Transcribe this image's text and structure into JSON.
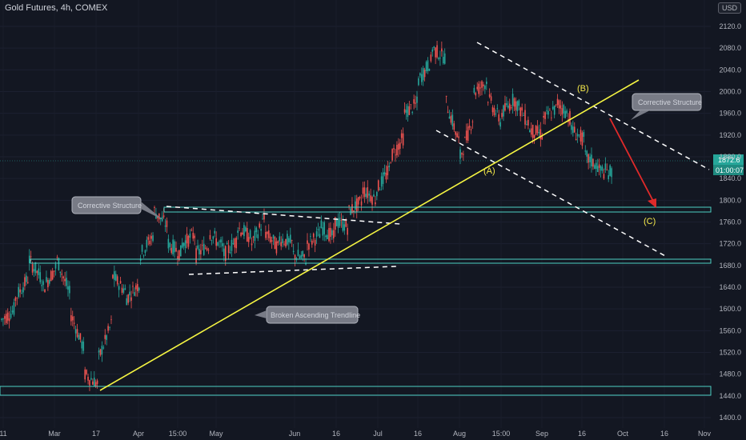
{
  "header": {
    "title": "Gold Futures, 4h, COMEX",
    "currency_button": "USD"
  },
  "colors": {
    "background": "#131722",
    "up_candle": "#26a69a",
    "down_candle": "#ef5350",
    "trendline": "#f5f542",
    "support_zone": "#4dd0c4",
    "dashed_lines": "#ffffff",
    "arrow": "#e02a2a",
    "price_tag": "#26a69a"
  },
  "current_price": {
    "price": "1872.6",
    "countdown": "01:00:07"
  },
  "chart_data": {
    "type": "candlestick",
    "ylim": [
      1390,
      2140
    ],
    "y_ticks": [
      "1400.0",
      "1440.0",
      "1480.0",
      "1520.0",
      "1560.0",
      "1600.0",
      "1640.0",
      "1680.0",
      "1720.0",
      "1760.0",
      "1800.0",
      "1840.0",
      "1880.0",
      "1920.0",
      "1960.0",
      "2000.0",
      "2040.0",
      "2080.0",
      "2120.0"
    ],
    "x_ticks": [
      "11",
      "Mar",
      "17",
      "Apr",
      "15:00",
      "May",
      "Jun",
      "16",
      "Jul",
      "16",
      "Aug",
      "15:00",
      "Sep",
      "16",
      "Oct",
      "16",
      "Nov"
    ],
    "price_path": [
      [
        1590,
        1580
      ],
      [
        1600,
        1620
      ],
      [
        1660,
        1690
      ],
      [
        1650,
        1640
      ],
      [
        1680,
        1690
      ],
      [
        1620,
        1590
      ],
      [
        1520,
        1480
      ],
      [
        1460,
        1510
      ],
      [
        1580,
        1660
      ],
      [
        1630,
        1620
      ],
      [
        1650,
        1700
      ],
      [
        1740,
        1780
      ],
      [
        1750,
        1720
      ],
      [
        1700,
        1720
      ],
      [
        1740,
        1700
      ],
      [
        1720,
        1740
      ],
      [
        1710,
        1700
      ],
      [
        1730,
        1750
      ],
      [
        1730,
        1720
      ],
      [
        1770,
        1740
      ],
      [
        1710,
        1730
      ],
      [
        1720,
        1700
      ],
      [
        1690,
        1720
      ],
      [
        1740,
        1750
      ],
      [
        1730,
        1760
      ],
      [
        1750,
        1780
      ],
      [
        1800,
        1820
      ],
      [
        1800,
        1820
      ],
      [
        1860,
        1880
      ],
      [
        1920,
        1960
      ],
      [
        1980,
        2020
      ],
      [
        2060,
        2080
      ],
      [
        2060,
        1980
      ],
      [
        1900,
        1880
      ],
      [
        1960,
        2000
      ],
      [
        2020,
        1990
      ],
      [
        1940,
        1960
      ],
      [
        1990,
        1980
      ],
      [
        1940,
        1930
      ],
      [
        1920,
        1950
      ],
      [
        1970,
        1980
      ],
      [
        1950,
        1930
      ],
      [
        1910,
        1880
      ],
      [
        1860,
        1855
      ],
      [
        1850,
        1860
      ]
    ],
    "annotations": {
      "callouts": [
        "Corrective Structure",
        "Corrective Structure",
        "Broken Ascending Trendline"
      ],
      "wave_labels": [
        "(A)",
        "(B)",
        "(C)"
      ]
    }
  }
}
